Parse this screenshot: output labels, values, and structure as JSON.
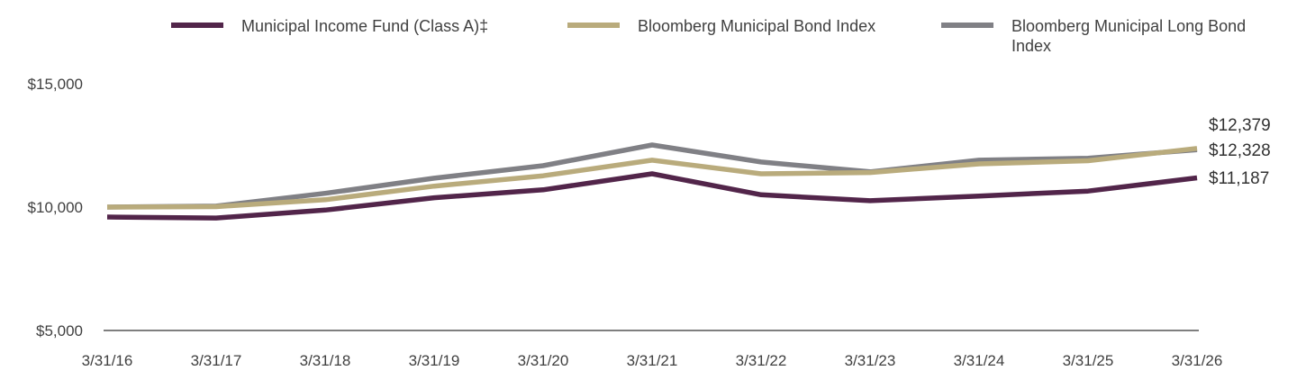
{
  "chart_data": {
    "type": "line",
    "x": [
      "3/31/16",
      "3/31/17",
      "3/31/18",
      "3/31/19",
      "3/31/20",
      "3/31/21",
      "3/31/22",
      "3/31/23",
      "3/31/24",
      "3/31/25",
      "3/31/26"
    ],
    "yticks": [
      "$5,000",
      "$10,000",
      "$15,000"
    ],
    "ylim": [
      5000,
      15000
    ],
    "grid": false,
    "legend": "top",
    "series": [
      {
        "name": "Municipal Income Fund (Class A)‡",
        "color": "#52254a",
        "values": [
          9600,
          9560,
          9880,
          10380,
          10700,
          11350,
          10500,
          10260,
          10450,
          10650,
          11187
        ],
        "end_label": "$11,187"
      },
      {
        "name": "Bloomberg Municipal Bond Index",
        "color": "#b9ab7c",
        "values": [
          10000,
          10020,
          10300,
          10850,
          11270,
          11900,
          11350,
          11400,
          11750,
          11880,
          12379
        ],
        "end_label": "$12,379"
      },
      {
        "name": "Bloomberg Municipal Long Bond Index",
        "color": "#808085",
        "values": [
          10000,
          10040,
          10560,
          11170,
          11680,
          12520,
          11830,
          11430,
          11900,
          11980,
          12328
        ],
        "end_label": "$12,328"
      }
    ]
  }
}
